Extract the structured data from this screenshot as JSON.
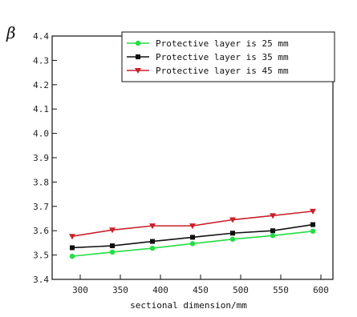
{
  "chart_data": {
    "type": "line",
    "title": "",
    "xlabel": "sectional dimension/mm",
    "ylabel": "β",
    "xlim": [
      265,
      615
    ],
    "ylim": [
      3.4,
      4.4
    ],
    "xticks": [
      300,
      350,
      400,
      450,
      500,
      550,
      600
    ],
    "yticks": [
      3.4,
      3.5,
      3.6,
      3.7,
      3.8,
      3.9,
      4.0,
      4.1,
      4.2,
      4.3,
      4.4
    ],
    "ytick_labels": [
      "3.4",
      "3.5",
      "3.6",
      "3.7",
      "3.8",
      "3.9",
      "4.0",
      "4.1",
      "4.2",
      "4.3",
      "4.4"
    ],
    "x": [
      290,
      340,
      390,
      440,
      490,
      540,
      590
    ],
    "grid": false,
    "legend_position": "top-right",
    "series": [
      {
        "name": "Protective layer is 25 mm",
        "values": [
          3.495,
          3.512,
          3.528,
          3.547,
          3.565,
          3.58,
          3.598
        ],
        "color": "#22dd44",
        "marker": "circle"
      },
      {
        "name": "Protective layer is 35 mm",
        "values": [
          3.53,
          3.538,
          3.556,
          3.573,
          3.59,
          3.6,
          3.625
        ],
        "color": "#111111",
        "marker": "square"
      },
      {
        "name": "Protective layer is 45 mm",
        "values": [
          3.577,
          3.603,
          3.62,
          3.62,
          3.645,
          3.662,
          3.68
        ],
        "color": "#c8202a",
        "marker": "triangle-down"
      }
    ]
  }
}
